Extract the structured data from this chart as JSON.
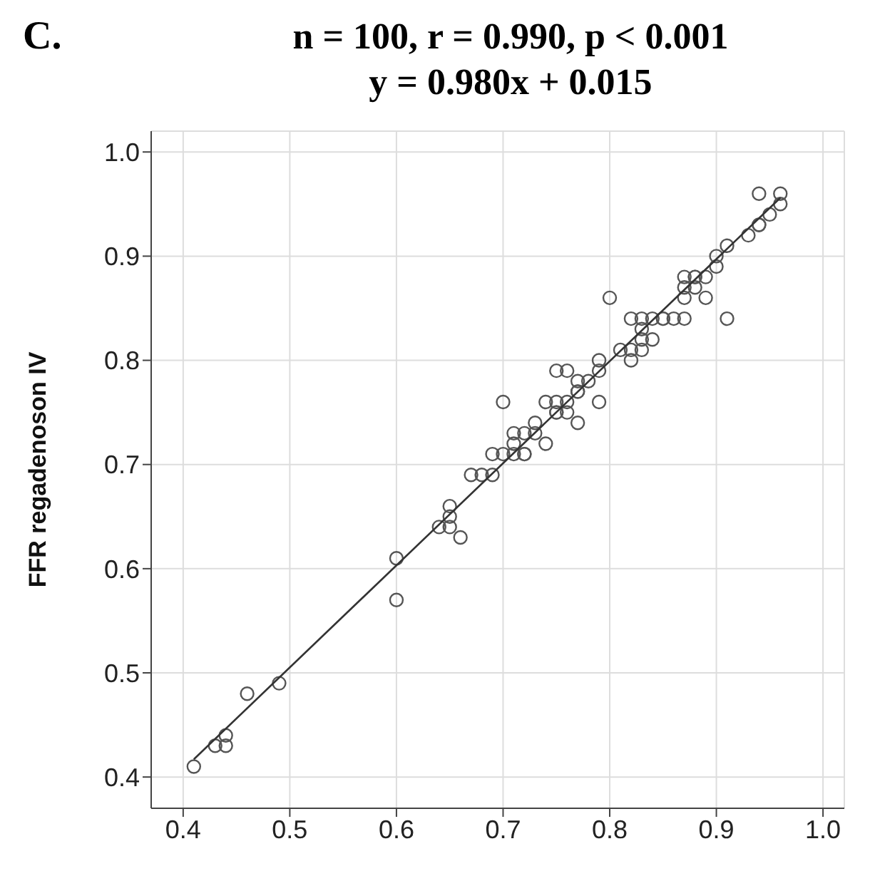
{
  "chart_data": {
    "type": "scatter",
    "title": "n = 100, r = 0.990, p < 0.001",
    "subtitle": "y = 0.980x + 0.015",
    "ylabel": "FFR regadenoson IV",
    "annotations": [
      "C."
    ],
    "xlim": [
      0.37,
      1.02
    ],
    "ylim": [
      0.37,
      1.02
    ],
    "xticks": [
      0.4,
      0.5,
      0.6,
      0.7,
      0.8,
      0.9,
      {
        "value": 1,
        "label": "1.0"
      }
    ],
    "yticks": [
      0.4,
      0.5,
      0.6,
      0.7,
      0.8,
      0.9,
      {
        "value": 1,
        "label": "1.0"
      }
    ],
    "grid": true,
    "marker": "circle",
    "series": [
      {
        "color": "#555555",
        "x": [
          0.41,
          0.43,
          0.44,
          0.44,
          0.46,
          0.49,
          0.6,
          0.6,
          0.64,
          0.65,
          0.65,
          0.65,
          0.66,
          0.67,
          0.68,
          0.69,
          0.69,
          0.7,
          0.7,
          0.71,
          0.72,
          0.72,
          0.71,
          0.71,
          0.72,
          0.73,
          0.73,
          0.74,
          0.74,
          0.75,
          0.76,
          0.75,
          0.75,
          0.76,
          0.77,
          0.75,
          0.76,
          0.77,
          0.77,
          0.77,
          0.78,
          0.79,
          0.79,
          0.79,
          0.8,
          0.82,
          0.81,
          0.82,
          0.83,
          0.83,
          0.83,
          0.82,
          0.83,
          0.84,
          0.85,
          0.84,
          0.85,
          0.86,
          0.87,
          0.87,
          0.88,
          0.87,
          0.88,
          0.89,
          0.89,
          0.88,
          0.87,
          0.9,
          0.9,
          0.91,
          0.91,
          0.93,
          0.94,
          0.94,
          0.94,
          0.95,
          0.96,
          0.96
        ],
        "values": [
          0.41,
          0.43,
          0.44,
          0.43,
          0.48,
          0.49,
          0.61,
          0.57,
          0.64,
          0.64,
          0.66,
          0.65,
          0.63,
          0.69,
          0.69,
          0.69,
          0.71,
          0.71,
          0.76,
          0.71,
          0.71,
          0.71,
          0.73,
          0.72,
          0.73,
          0.74,
          0.73,
          0.72,
          0.76,
          0.76,
          0.76,
          0.75,
          0.75,
          0.75,
          0.74,
          0.79,
          0.79,
          0.78,
          0.77,
          0.77,
          0.78,
          0.79,
          0.76,
          0.8,
          0.86,
          0.8,
          0.81,
          0.81,
          0.81,
          0.82,
          0.84,
          0.84,
          0.83,
          0.84,
          0.84,
          0.82,
          0.84,
          0.84,
          0.84,
          0.87,
          0.87,
          0.86,
          0.88,
          0.86,
          0.88,
          0.88,
          0.88,
          0.89,
          0.9,
          0.84,
          0.91,
          0.92,
          0.93,
          0.96,
          0.93,
          0.94,
          0.96,
          0.95
        ]
      },
      {
        "type": "line",
        "marker": "none",
        "color": "#333333",
        "x": [
          0.41,
          0.96
        ],
        "values": [
          0.417,
          0.956
        ]
      }
    ]
  }
}
